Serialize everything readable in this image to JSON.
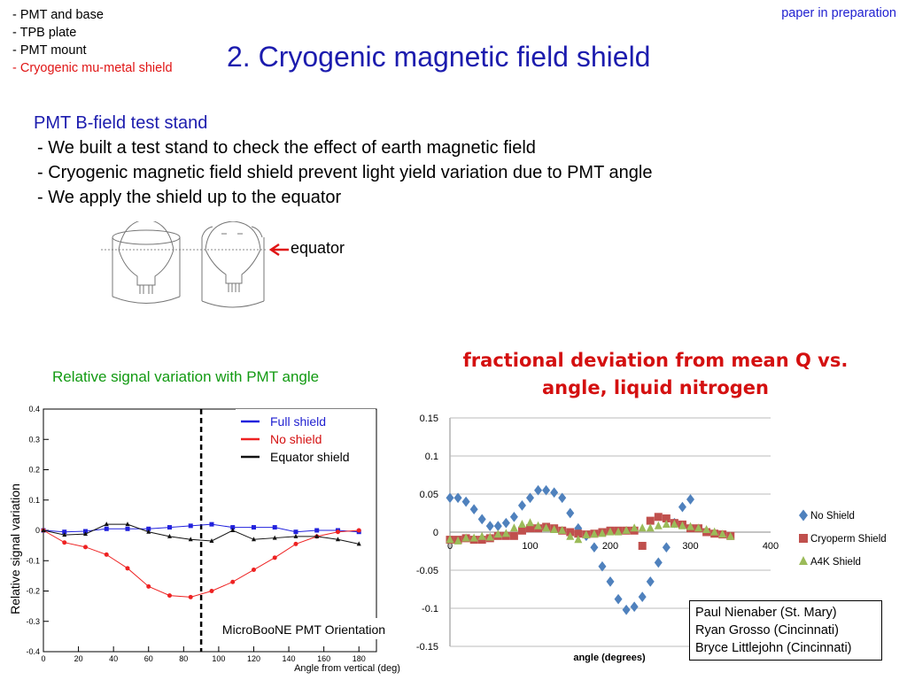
{
  "toc": {
    "items": [
      {
        "label": "- PMT and base",
        "color": "#000000"
      },
      {
        "label": "- TPB plate",
        "color": "#000000"
      },
      {
        "label": "- PMT mount",
        "color": "#000000"
      },
      {
        "label": "- Cryogenic mu-metal shield",
        "color": "#e01515"
      }
    ]
  },
  "paper_note": "paper in preparation",
  "slide_title": "2. Cryogenic magnetic field shield",
  "section": {
    "heading": "PMT B-field test stand",
    "bullets": [
      "- We built a test stand to check the effect of earth magnetic field",
      "- Cryogenic magnetic field shield prevent light yield variation due to PMT angle",
      "- We apply the shield up to the equator"
    ]
  },
  "diagram": {
    "equator_label": "equator"
  },
  "credits": [
    "Paul Nienaber (St. Mary)",
    "Ryan Grosso (Cincinnati)",
    "Bryce Littlejohn (Cincinnati)"
  ],
  "chart_data": [
    {
      "type": "line",
      "title": "Relative signal variation with PMT angle",
      "ylabel": "Relative signal variation",
      "xlabel": "Angle from vertical (deg)",
      "xlim": [
        0,
        190
      ],
      "ylim": [
        -0.4,
        0.4
      ],
      "xticks": [
        0,
        20,
        40,
        60,
        80,
        100,
        120,
        140,
        160,
        180
      ],
      "yticks": [
        -0.4,
        -0.3,
        -0.2,
        -0.1,
        0,
        0.1,
        0.2,
        0.3,
        0.4
      ],
      "vline_x": 90,
      "annotation": "MicroBooNE PMT Orientation",
      "legend_position": "top-right",
      "series": [
        {
          "name": "Full shield",
          "color": "#2222dd",
          "marker": "square",
          "x": [
            0,
            12,
            24,
            36,
            48,
            60,
            72,
            84,
            96,
            108,
            120,
            132,
            144,
            156,
            168,
            180
          ],
          "y": [
            0.0,
            -0.005,
            -0.003,
            0.005,
            0.005,
            0.005,
            0.01,
            0.015,
            0.02,
            0.01,
            0.01,
            0.01,
            -0.005,
            0.0,
            0.0,
            -0.005
          ]
        },
        {
          "name": "No shield",
          "color": "#ee2222",
          "marker": "circle",
          "x": [
            0,
            12,
            24,
            36,
            48,
            60,
            72,
            84,
            96,
            108,
            120,
            132,
            144,
            156,
            168,
            180
          ],
          "y": [
            0.0,
            -0.04,
            -0.055,
            -0.08,
            -0.125,
            -0.185,
            -0.215,
            -0.22,
            -0.2,
            -0.17,
            -0.13,
            -0.09,
            -0.045,
            -0.02,
            -0.005,
            0.0
          ]
        },
        {
          "name": "Equator shield",
          "color": "#111111",
          "marker": "triangle",
          "x": [
            0,
            12,
            24,
            36,
            48,
            60,
            72,
            84,
            96,
            108,
            120,
            132,
            144,
            156,
            168,
            180
          ],
          "y": [
            0.0,
            -0.015,
            -0.012,
            0.02,
            0.02,
            -0.005,
            -0.02,
            -0.03,
            -0.035,
            0.0,
            -0.03,
            -0.025,
            -0.02,
            -0.02,
            -0.03,
            -0.045
          ]
        }
      ]
    },
    {
      "type": "scatter",
      "title": "fractional deviation from mean Q vs. angle, liquid nitrogen",
      "xlabel": "angle (degrees)",
      "ylabel": "",
      "xlim": [
        0,
        400
      ],
      "ylim": [
        -0.15,
        0.15
      ],
      "xticks": [
        0,
        100,
        200,
        300,
        400
      ],
      "yticks": [
        -0.15,
        -0.1,
        -0.05,
        0,
        0.05,
        0.1,
        0.15
      ],
      "legend_position": "right",
      "series": [
        {
          "name": "No Shield",
          "color": "#4f81bd",
          "marker": "diamond",
          "x": [
            0,
            10,
            20,
            30,
            40,
            50,
            60,
            70,
            80,
            90,
            100,
            110,
            120,
            130,
            140,
            150,
            160,
            170,
            180,
            190,
            200,
            210,
            220,
            230,
            240,
            250,
            260,
            270,
            280,
            290,
            300,
            310,
            320,
            330,
            340,
            350
          ],
          "y": [
            0.045,
            0.045,
            0.04,
            0.03,
            0.017,
            0.008,
            0.008,
            0.012,
            0.02,
            0.035,
            0.045,
            0.055,
            0.055,
            0.052,
            0.045,
            0.025,
            0.005,
            -0.005,
            -0.02,
            -0.045,
            -0.065,
            -0.088,
            -0.102,
            -0.098,
            -0.085,
            -0.065,
            -0.04,
            -0.02,
            0.012,
            0.033,
            0.043,
            0.0,
            0.0,
            0.0,
            0.0,
            0.0
          ]
        },
        {
          "name": "Cryoperm Shield",
          "color": "#c0504d",
          "marker": "square",
          "x": [
            0,
            10,
            20,
            30,
            40,
            50,
            60,
            70,
            80,
            90,
            100,
            110,
            120,
            130,
            140,
            150,
            160,
            170,
            180,
            190,
            200,
            210,
            220,
            230,
            240,
            250,
            260,
            270,
            280,
            290,
            300,
            310,
            320,
            330,
            340,
            350
          ],
          "y": [
            -0.01,
            -0.01,
            -0.008,
            -0.01,
            -0.01,
            -0.008,
            -0.005,
            -0.005,
            -0.005,
            0.002,
            0.005,
            0.005,
            0.007,
            0.005,
            0.002,
            0.0,
            -0.002,
            -0.003,
            -0.002,
            0.0,
            0.002,
            0.002,
            0.002,
            0.002,
            -0.018,
            0.015,
            0.02,
            0.018,
            0.012,
            0.01,
            0.005,
            0.005,
            0.0,
            -0.002,
            -0.003,
            -0.005
          ]
        },
        {
          "name": "A4K Shield",
          "color": "#9bbb59",
          "marker": "triangle",
          "x": [
            0,
            10,
            20,
            30,
            40,
            50,
            60,
            70,
            80,
            90,
            100,
            110,
            120,
            130,
            140,
            150,
            160,
            170,
            180,
            190,
            200,
            210,
            220,
            230,
            240,
            250,
            260,
            270,
            280,
            290,
            300,
            310,
            320,
            330,
            340,
            350
          ],
          "y": [
            -0.01,
            -0.012,
            -0.008,
            -0.008,
            -0.006,
            -0.007,
            -0.003,
            -0.002,
            0.005,
            0.01,
            0.012,
            0.008,
            0.005,
            0.003,
            0.002,
            -0.006,
            -0.01,
            -0.004,
            -0.003,
            -0.002,
            0.0,
            0.0,
            0.002,
            0.005,
            0.005,
            0.005,
            0.008,
            0.01,
            0.01,
            0.008,
            0.007,
            0.005,
            0.003,
            0.0,
            -0.003,
            -0.006
          ]
        }
      ]
    }
  ]
}
